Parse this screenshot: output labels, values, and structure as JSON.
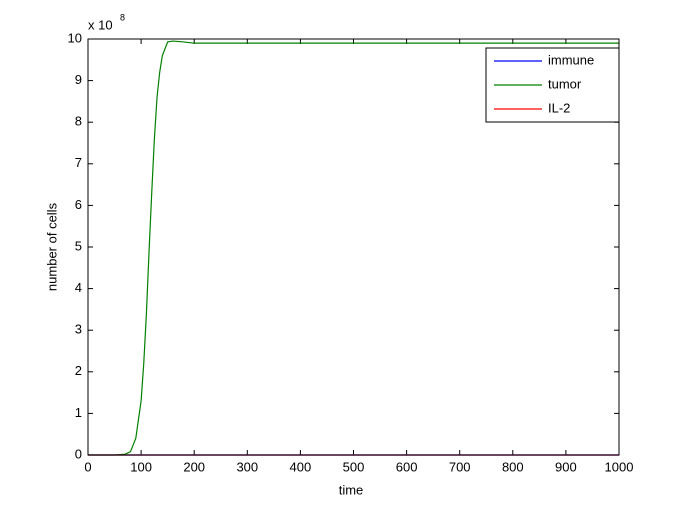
{
  "chart_data": {
    "type": "line",
    "x_label": "time",
    "y_label": "number of cells",
    "y_multiplier_base": "x 10",
    "y_multiplier_exponent": "8",
    "x": [
      0,
      50,
      70,
      80,
      90,
      100,
      105,
      110,
      115,
      120,
      125,
      130,
      135,
      140,
      150,
      160,
      180,
      200,
      300,
      400,
      500,
      600,
      700,
      800,
      900,
      1000
    ],
    "series": [
      {
        "name": "immune",
        "color": "#0000ff",
        "values": [
          0,
          0,
          0,
          0,
          0,
          0,
          0,
          0,
          0,
          0,
          0,
          0,
          0,
          0,
          0,
          0,
          0,
          0,
          0,
          0,
          0,
          0,
          0,
          0,
          0,
          0
        ]
      },
      {
        "name": "tumor",
        "color": "#008000",
        "values": [
          0,
          0,
          0.02,
          0.08,
          0.4,
          1.3,
          2.2,
          3.4,
          4.9,
          6.3,
          7.6,
          8.6,
          9.2,
          9.6,
          9.93,
          9.95,
          9.93,
          9.9,
          9.9,
          9.9,
          9.9,
          9.9,
          9.9,
          9.9,
          9.9,
          9.9
        ]
      },
      {
        "name": "IL-2",
        "color": "#ff0000",
        "values": [
          0,
          0,
          0,
          0,
          0,
          0,
          0,
          0,
          0,
          0,
          0,
          0,
          0,
          0,
          0,
          0,
          0,
          0,
          0,
          0,
          0,
          0,
          0,
          0,
          0,
          0
        ]
      }
    ],
    "xlim": [
      0,
      1000
    ],
    "xticks": [
      0,
      100,
      200,
      300,
      400,
      500,
      600,
      700,
      800,
      900,
      1000
    ],
    "ylim": [
      0,
      10
    ],
    "yticks": [
      0,
      1,
      2,
      3,
      4,
      5,
      6,
      7,
      8,
      9,
      10
    ],
    "grid": false,
    "legend": "northeast"
  }
}
